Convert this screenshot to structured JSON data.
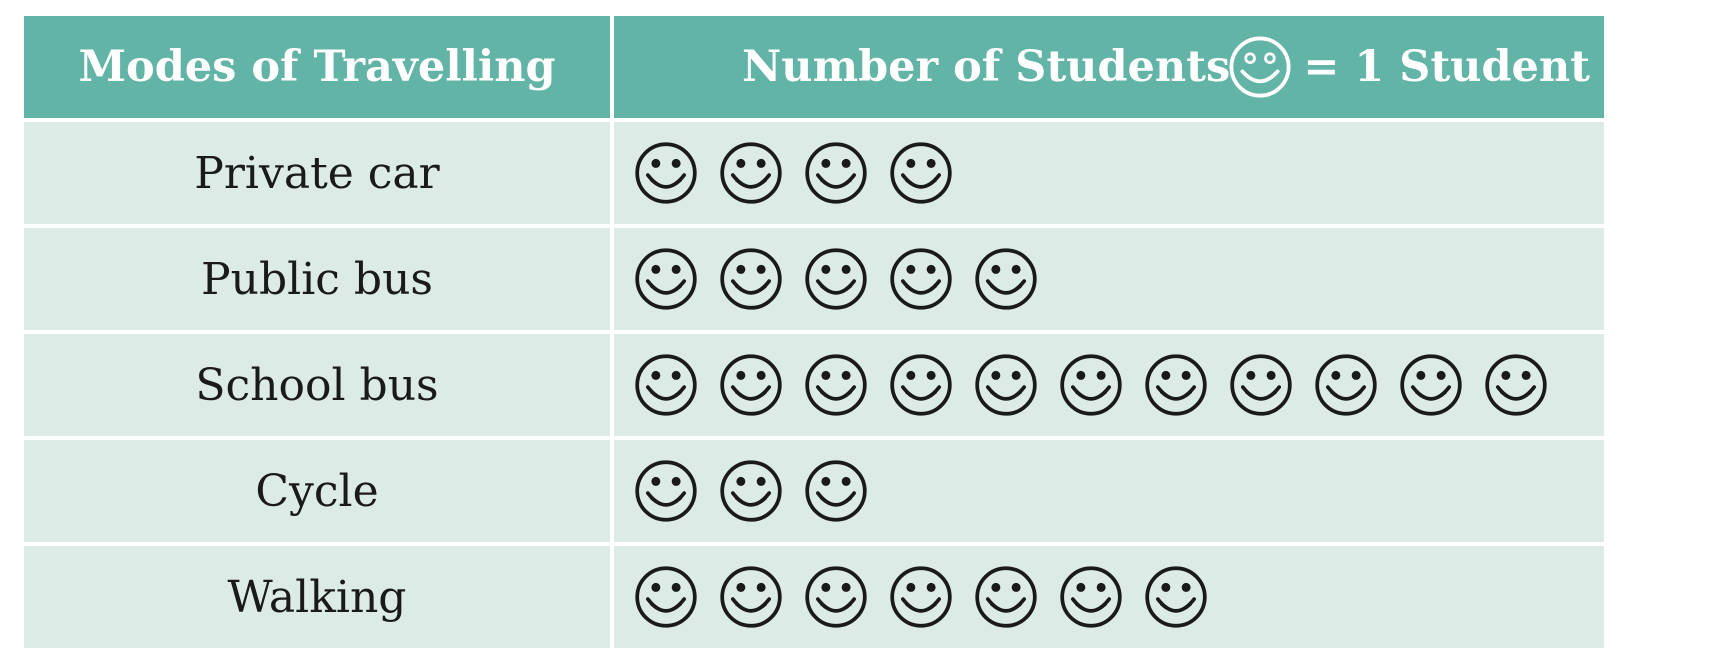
{
  "chart_data": {
    "type": "table",
    "title": "",
    "headers": {
      "mode": "Modes of Travelling",
      "count": "Number of Students",
      "key": "= 1 Student"
    },
    "icon": "smiley-face-icon",
    "icon_value": 1,
    "categories": [
      "Private car",
      "Public bus",
      "School bus",
      "Cycle",
      "Walking"
    ],
    "values": [
      4,
      5,
      11,
      3,
      7
    ]
  },
  "colors": {
    "header_bg": "#62b4a6",
    "row_bg": "#dcebe6",
    "icon_stroke": "#1a1a1a"
  }
}
